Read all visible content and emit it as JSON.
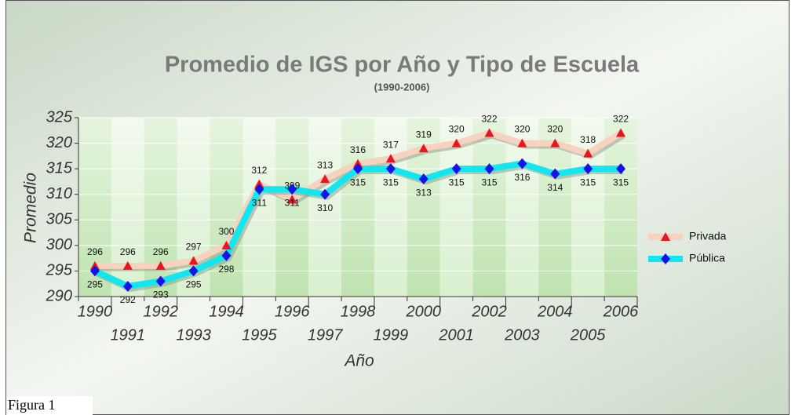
{
  "chart_data": {
    "type": "line",
    "title": "Promedio de IGS por Año y Tipo de Escuela",
    "subtitle": "(1990-2006)",
    "y_label": "Promedio",
    "x_label": "Año",
    "categories": [
      "1990",
      "1991",
      "1992",
      "1993",
      "1994",
      "1995",
      "1996",
      "1997",
      "1998",
      "1999",
      "2000",
      "2001",
      "2002",
      "2003",
      "2004",
      "2005",
      "2006"
    ],
    "series": [
      {
        "name": "Privada",
        "color": "#f7d3bf",
        "marker_color": "#e8141e",
        "marker": "triangle",
        "values": [
          296,
          296,
          296,
          297,
          300,
          312,
          309,
          313,
          316,
          317,
          319,
          320,
          322,
          320,
          320,
          318,
          322
        ]
      },
      {
        "name": "Pública",
        "color": "#14e6f0",
        "marker_color": "#1414e6",
        "marker": "diamond",
        "values": [
          295,
          292,
          293,
          295,
          298,
          311,
          311,
          310,
          315,
          315,
          313,
          315,
          315,
          316,
          314,
          315,
          315
        ]
      }
    ],
    "ylim": [
      290,
      325
    ],
    "yticks": [
      290,
      295,
      300,
      305,
      310,
      315,
      320,
      325
    ],
    "grid": true,
    "legend": "right"
  },
  "caption": "Figura 1"
}
